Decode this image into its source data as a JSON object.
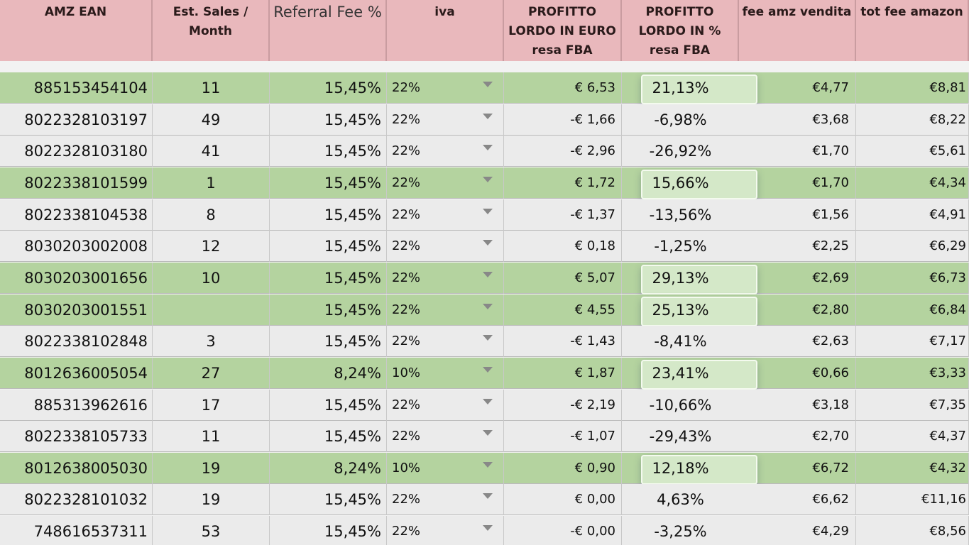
{
  "table": {
    "header": [
      "AMZ EAN",
      "Est. Sales / Month",
      "Referral Fee %",
      "iva",
      "PROFITTO LORDO IN EURO resa FBA",
      "PROFITTO LORDO IN % resa FBA",
      "fee amz vendita",
      "tot fee amazon"
    ],
    "rows": [
      {
        "highlight": true,
        "cells": [
          "885153454104",
          "11",
          "15,45%",
          "22%",
          "€ 6,53",
          "21,13%",
          "€4,77",
          "€8,81"
        ]
      },
      {
        "highlight": false,
        "cells": [
          "8022328103197",
          "49",
          "15,45%",
          "22%",
          "-€ 1,66",
          "-6,98%",
          "€3,68",
          "€8,22"
        ]
      },
      {
        "highlight": false,
        "cells": [
          "8022328103180",
          "41",
          "15,45%",
          "22%",
          "-€ 2,96",
          "-26,92%",
          "€1,70",
          "€5,61"
        ]
      },
      {
        "highlight": true,
        "cells": [
          "8022338101599",
          "1",
          "15,45%",
          "22%",
          "€ 1,72",
          "15,66%",
          "€1,70",
          "€4,34"
        ]
      },
      {
        "highlight": false,
        "cells": [
          "8022338104538",
          "8",
          "15,45%",
          "22%",
          "-€ 1,37",
          "-13,56%",
          "€1,56",
          "€4,91"
        ]
      },
      {
        "highlight": false,
        "cells": [
          "8030203002008",
          "12",
          "15,45%",
          "22%",
          "€ 0,18",
          "-1,25%",
          "€2,25",
          "€6,29"
        ]
      },
      {
        "highlight": true,
        "cells": [
          "8030203001656",
          "10",
          "15,45%",
          "22%",
          "€ 5,07",
          "29,13%",
          "€2,69",
          "€6,73"
        ]
      },
      {
        "highlight": true,
        "cells": [
          "8030203001551",
          null,
          "15,45%",
          "22%",
          "€ 4,55",
          "25,13%",
          "€2,80",
          "€6,84"
        ]
      },
      {
        "highlight": false,
        "cells": [
          "8022338102848",
          "3",
          "15,45%",
          "22%",
          "-€ 1,43",
          "-8,41%",
          "€2,63",
          "€7,17"
        ]
      },
      {
        "highlight": true,
        "cells": [
          "8012636005054",
          "27",
          "8,24%",
          "10%",
          "€ 1,87",
          "23,41%",
          "€0,66",
          "€3,33"
        ]
      },
      {
        "highlight": false,
        "cells": [
          "885313962616",
          "17",
          "15,45%",
          "22%",
          "-€ 2,19",
          "-10,66%",
          "€3,18",
          "€7,35"
        ]
      },
      {
        "highlight": false,
        "cells": [
          "8022338105733",
          "11",
          "15,45%",
          "22%",
          "-€ 1,07",
          "-29,43%",
          "€2,70",
          "€4,37"
        ]
      },
      {
        "highlight": true,
        "cells": [
          "8012638005030",
          "19",
          "8,24%",
          "10%",
          "€ 0,90",
          "12,18%",
          "€6,72",
          "€4,32"
        ]
      },
      {
        "highlight": false,
        "cells": [
          "8022328101032",
          "19",
          "15,45%",
          "22%",
          "€ 0,00",
          "4,63%",
          "€6,62",
          "€11,16"
        ]
      },
      {
        "highlight": false,
        "cells": [
          "748616537311",
          "53",
          "15,45%",
          "22%",
          "-€ 0,00",
          "-3,25%",
          "€4,29",
          "€8,56"
        ]
      }
    ]
  }
}
